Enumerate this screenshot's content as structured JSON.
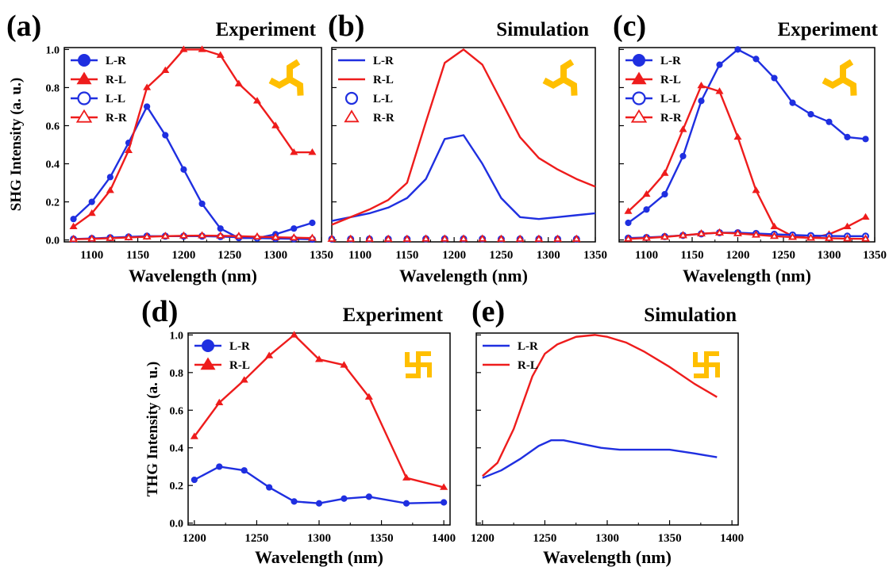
{
  "chart_data": [
    {
      "id": "a",
      "panel_label": "(a)",
      "title": "Experiment",
      "type": "line",
      "xlabel": "Wavelength (nm)",
      "ylabel": "SHG Intensity (a. u.)",
      "xlim": [
        1070,
        1350
      ],
      "ylim": [
        -0.01,
        1.01
      ],
      "xticks": [
        1100,
        1150,
        1200,
        1250,
        1300,
        1350
      ],
      "xtick_labels": [
        "1100",
        "1150",
        "1200",
        "1250",
        "1300",
        "1350"
      ],
      "yticks": [
        0.0,
        0.2,
        0.4,
        0.6,
        0.8,
        1.0
      ],
      "ytick_labels": [
        "0.0",
        "0.2",
        "0.4",
        "0.6",
        "0.8",
        "1.0"
      ],
      "legend": "top-left",
      "grid": false,
      "icon": "three-arm-swirl-icon",
      "series": [
        {
          "name": "L-R",
          "color": "#1f2fe0",
          "marker": "circle",
          "filled": true,
          "x": [
            1080,
            1100,
            1120,
            1140,
            1160,
            1180,
            1200,
            1220,
            1240,
            1260,
            1280,
            1300,
            1320,
            1340
          ],
          "y": [
            0.11,
            0.2,
            0.33,
            0.51,
            0.7,
            0.55,
            0.37,
            0.19,
            0.06,
            0.01,
            0.01,
            0.03,
            0.06,
            0.09
          ]
        },
        {
          "name": "R-L",
          "color": "#ee1c1c",
          "marker": "triangle",
          "filled": true,
          "x": [
            1080,
            1100,
            1120,
            1140,
            1160,
            1180,
            1200,
            1220,
            1240,
            1260,
            1280,
            1300,
            1320,
            1340
          ],
          "y": [
            0.07,
            0.14,
            0.26,
            0.47,
            0.8,
            0.89,
            1.0,
            1.0,
            0.97,
            0.82,
            0.73,
            0.6,
            0.46,
            0.46
          ]
        },
        {
          "name": "L-L",
          "color": "#1f2fe0",
          "marker": "circle",
          "filled": false,
          "x": [
            1080,
            1100,
            1120,
            1140,
            1160,
            1180,
            1200,
            1220,
            1240,
            1260,
            1280,
            1300,
            1320,
            1340
          ],
          "y": [
            0.005,
            0.008,
            0.012,
            0.016,
            0.02,
            0.02,
            0.02,
            0.02,
            0.018,
            0.014,
            0.01,
            0.008,
            0.006,
            0.004
          ]
        },
        {
          "name": "R-R",
          "color": "#ee1c1c",
          "marker": "triangle",
          "filled": false,
          "x": [
            1080,
            1100,
            1120,
            1140,
            1160,
            1180,
            1200,
            1220,
            1240,
            1260,
            1280,
            1300,
            1320,
            1340
          ],
          "y": [
            0.004,
            0.006,
            0.009,
            0.013,
            0.017,
            0.02,
            0.022,
            0.023,
            0.022,
            0.02,
            0.017,
            0.014,
            0.012,
            0.01
          ]
        }
      ]
    },
    {
      "id": "b",
      "panel_label": "(b)",
      "title": "Simulation",
      "type": "line",
      "xlabel": "Wavelength (nm)",
      "ylabel": "",
      "xlim": [
        1070,
        1350
      ],
      "ylim": [
        -0.01,
        1.01
      ],
      "xticks": [
        1100,
        1150,
        1200,
        1250,
        1300,
        1350
      ],
      "xtick_labels": [
        "1100",
        "1150",
        "1200",
        "1250",
        "1300",
        "1350"
      ],
      "yticks": [
        0.0,
        0.2,
        0.4,
        0.6,
        0.8,
        1.0
      ],
      "ytick_labels": [
        "",
        "",
        "",
        "",
        "",
        ""
      ],
      "legend": "top-left",
      "grid": false,
      "icon": "three-arm-swirl-icon",
      "series": [
        {
          "name": "L-R",
          "color": "#1f2fe0",
          "marker": "none",
          "filled": false,
          "x": [
            1070,
            1090,
            1110,
            1130,
            1150,
            1170,
            1190,
            1210,
            1230,
            1250,
            1270,
            1290,
            1310,
            1330,
            1350
          ],
          "y": [
            0.1,
            0.12,
            0.14,
            0.17,
            0.22,
            0.32,
            0.53,
            0.55,
            0.4,
            0.22,
            0.12,
            0.11,
            0.12,
            0.13,
            0.14
          ]
        },
        {
          "name": "R-L",
          "color": "#ee1c1c",
          "marker": "none",
          "filled": false,
          "x": [
            1070,
            1090,
            1110,
            1130,
            1150,
            1170,
            1190,
            1210,
            1230,
            1250,
            1270,
            1290,
            1310,
            1330,
            1350
          ],
          "y": [
            0.08,
            0.12,
            0.16,
            0.21,
            0.3,
            0.62,
            0.93,
            1.0,
            0.92,
            0.73,
            0.54,
            0.43,
            0.37,
            0.32,
            0.28
          ]
        },
        {
          "name": "L-L",
          "color": "#1f2fe0",
          "marker": "circle",
          "filled": false,
          "x": [
            1070,
            1090,
            1110,
            1130,
            1150,
            1170,
            1190,
            1210,
            1230,
            1250,
            1270,
            1290,
            1310,
            1330
          ],
          "y": [
            0.005,
            0.005,
            0.005,
            0.005,
            0.005,
            0.006,
            0.006,
            0.006,
            0.006,
            0.005,
            0.005,
            0.005,
            0.005,
            0.005
          ]
        },
        {
          "name": "R-R",
          "color": "#ee1c1c",
          "marker": "triangle",
          "filled": false,
          "x": [
            1070,
            1090,
            1110,
            1130,
            1150,
            1170,
            1190,
            1210,
            1230,
            1250,
            1270,
            1290,
            1310,
            1330
          ],
          "y": [
            0.005,
            0.005,
            0.005,
            0.005,
            0.005,
            0.006,
            0.006,
            0.006,
            0.006,
            0.005,
            0.005,
            0.005,
            0.005,
            0.005
          ]
        }
      ]
    },
    {
      "id": "c",
      "panel_label": "(c)",
      "title": "Experiment",
      "type": "line",
      "xlabel": "Wavelength (nm)",
      "ylabel": "",
      "xlim": [
        1070,
        1350
      ],
      "ylim": [
        -0.01,
        1.01
      ],
      "xticks": [
        1100,
        1150,
        1200,
        1250,
        1300,
        1350
      ],
      "xtick_labels": [
        "1100",
        "1150",
        "1200",
        "1250",
        "1300",
        "1350"
      ],
      "yticks": [
        0.0,
        0.2,
        0.4,
        0.6,
        0.8,
        1.0
      ],
      "ytick_labels": [
        "",
        "",
        "",
        "",
        "",
        ""
      ],
      "legend": "top-left",
      "grid": false,
      "icon": "three-arm-swirl-icon",
      "series": [
        {
          "name": "L-R",
          "color": "#1f2fe0",
          "marker": "circle",
          "filled": true,
          "x": [
            1080,
            1100,
            1120,
            1140,
            1160,
            1180,
            1200,
            1220,
            1240,
            1260,
            1280,
            1300,
            1320,
            1340
          ],
          "y": [
            0.09,
            0.16,
            0.24,
            0.44,
            0.73,
            0.92,
            1.0,
            0.95,
            0.85,
            0.72,
            0.66,
            0.62,
            0.54,
            0.53
          ]
        },
        {
          "name": "R-L",
          "color": "#ee1c1c",
          "marker": "triangle",
          "filled": true,
          "x": [
            1080,
            1100,
            1120,
            1140,
            1160,
            1180,
            1200,
            1220,
            1240,
            1260,
            1280,
            1300,
            1320,
            1340
          ],
          "y": [
            0.15,
            0.24,
            0.35,
            0.58,
            0.81,
            0.78,
            0.54,
            0.26,
            0.07,
            0.02,
            0.01,
            0.03,
            0.07,
            0.12
          ]
        },
        {
          "name": "L-L",
          "color": "#1f2fe0",
          "marker": "circle",
          "filled": false,
          "x": [
            1080,
            1100,
            1120,
            1140,
            1160,
            1180,
            1200,
            1220,
            1240,
            1260,
            1280,
            1300,
            1320,
            1340
          ],
          "y": [
            0.01,
            0.013,
            0.018,
            0.024,
            0.032,
            0.038,
            0.038,
            0.034,
            0.03,
            0.026,
            0.023,
            0.021,
            0.02,
            0.02
          ]
        },
        {
          "name": "R-R",
          "color": "#ee1c1c",
          "marker": "triangle",
          "filled": false,
          "x": [
            1080,
            1100,
            1120,
            1140,
            1160,
            1180,
            1200,
            1220,
            1240,
            1260,
            1280,
            1300,
            1320,
            1340
          ],
          "y": [
            0.006,
            0.01,
            0.016,
            0.024,
            0.033,
            0.038,
            0.034,
            0.027,
            0.02,
            0.015,
            0.011,
            0.009,
            0.007,
            0.006
          ]
        }
      ]
    },
    {
      "id": "d",
      "panel_label": "(d)",
      "title": "Experiment",
      "type": "line",
      "xlabel": "Wavelength (nm)",
      "ylabel": "THG Intensity (a. u.)",
      "xlim": [
        1195,
        1405
      ],
      "ylim": [
        -0.01,
        1.01
      ],
      "xticks": [
        1200,
        1250,
        1300,
        1350,
        1400
      ],
      "xtick_labels": [
        "1200",
        "1250",
        "1300",
        "1350",
        "1400"
      ],
      "yticks": [
        0.0,
        0.2,
        0.4,
        0.6,
        0.8,
        1.0
      ],
      "ytick_labels": [
        "0.0",
        "0.2",
        "0.4",
        "0.6",
        "0.8",
        "1.0"
      ],
      "legend": "top-left",
      "grid": false,
      "icon": "four-arm-swastika-icon",
      "series": [
        {
          "name": "L-R",
          "color": "#1f2fe0",
          "marker": "circle",
          "filled": true,
          "x": [
            1200,
            1220,
            1240,
            1260,
            1280,
            1300,
            1320,
            1340,
            1370,
            1400
          ],
          "y": [
            0.23,
            0.3,
            0.28,
            0.19,
            0.115,
            0.105,
            0.13,
            0.14,
            0.105,
            0.11
          ]
        },
        {
          "name": "R-L",
          "color": "#ee1c1c",
          "marker": "triangle",
          "filled": true,
          "x": [
            1200,
            1220,
            1240,
            1260,
            1280,
            1300,
            1320,
            1340,
            1370,
            1400
          ],
          "y": [
            0.46,
            0.64,
            0.76,
            0.89,
            1.0,
            0.87,
            0.84,
            0.67,
            0.24,
            0.19
          ]
        }
      ]
    },
    {
      "id": "e",
      "panel_label": "(e)",
      "title": "Simulation",
      "type": "line",
      "xlabel": "Wavelength (nm)",
      "ylabel": "",
      "xlim": [
        1195,
        1405
      ],
      "ylim": [
        -0.01,
        1.01
      ],
      "xticks": [
        1200,
        1250,
        1300,
        1350,
        1400
      ],
      "xtick_labels": [
        "1200",
        "1250",
        "1300",
        "1350",
        "1400"
      ],
      "yticks": [
        0.0,
        0.2,
        0.4,
        0.6,
        0.8,
        1.0
      ],
      "ytick_labels": [
        "",
        "",
        "",
        "",
        "",
        ""
      ],
      "legend": "top-left",
      "grid": false,
      "icon": "four-arm-swastika-icon",
      "series": [
        {
          "name": "L-R",
          "color": "#1f2fe0",
          "marker": "none",
          "filled": false,
          "x": [
            1200,
            1215,
            1230,
            1245,
            1255,
            1265,
            1280,
            1295,
            1310,
            1330,
            1350,
            1370,
            1388
          ],
          "y": [
            0.24,
            0.28,
            0.34,
            0.41,
            0.44,
            0.44,
            0.42,
            0.4,
            0.39,
            0.39,
            0.39,
            0.37,
            0.35
          ]
        },
        {
          "name": "R-L",
          "color": "#ee1c1c",
          "marker": "none",
          "filled": false,
          "x": [
            1200,
            1212,
            1225,
            1240,
            1250,
            1260,
            1275,
            1290,
            1300,
            1315,
            1330,
            1350,
            1370,
            1388
          ],
          "y": [
            0.25,
            0.32,
            0.5,
            0.78,
            0.9,
            0.95,
            0.99,
            1.0,
            0.99,
            0.96,
            0.91,
            0.83,
            0.74,
            0.67
          ]
        }
      ]
    }
  ]
}
